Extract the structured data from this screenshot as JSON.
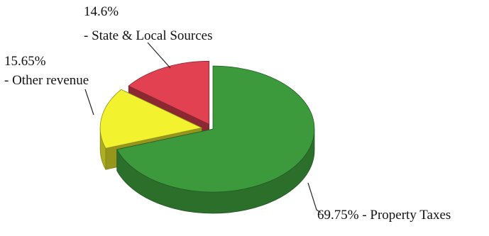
{
  "chart_data": {
    "type": "pie",
    "style": "3d-exploded",
    "slices": [
      {
        "label": "- Property Taxes",
        "value": 69.75,
        "value_label": "69.75%",
        "color": "#3c9a3c"
      },
      {
        "label": "- Other revenue",
        "value": 15.65,
        "value_label": "15.65%",
        "color": "#f2f22e"
      },
      {
        "label": "- State & Local Sources",
        "value": 14.6,
        "value_label": "14.6%",
        "color": "#e14150"
      }
    ]
  }
}
